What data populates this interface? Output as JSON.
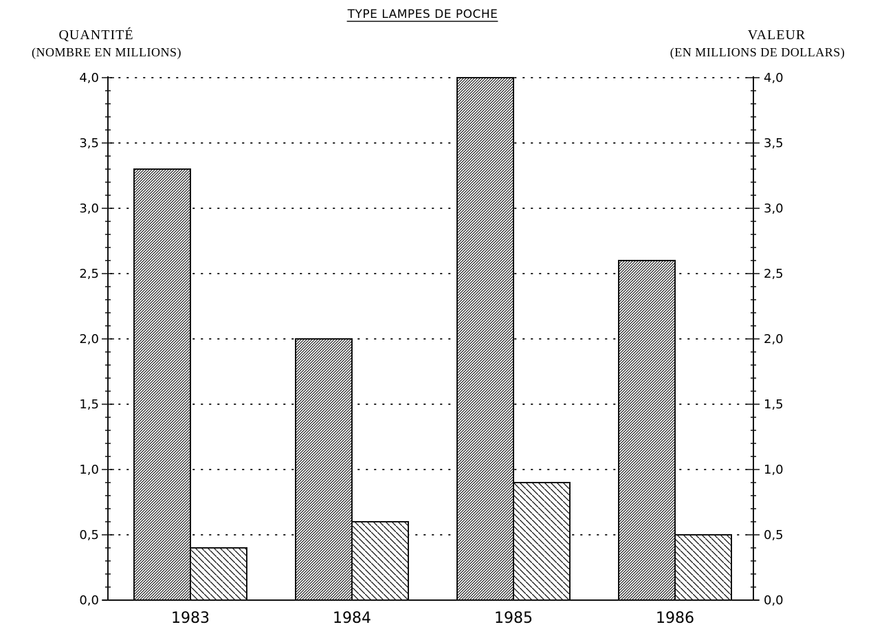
{
  "chart_data": {
    "type": "bar",
    "title": "TYPE LAMPES DE POCHE",
    "left_axis": {
      "title": "QUANTITÉ",
      "subtitle": "(NOMBRE EN MILLIONS)",
      "ylim": [
        0,
        4
      ],
      "ticks": [
        "0,0",
        "0,5",
        "1,0",
        "1,5",
        "2,0",
        "2,5",
        "3,0",
        "3,5",
        "4,0"
      ]
    },
    "right_axis": {
      "title": "VALEUR",
      "subtitle": "(EN MILLIONS DE DOLLARS)",
      "ylim": [
        0,
        4
      ],
      "ticks": [
        "0,0",
        "0,5",
        "1,0",
        "1,5",
        "2,0",
        "2,5",
        "3,0",
        "3,5",
        "4,0"
      ]
    },
    "categories": [
      "1983",
      "1984",
      "1985",
      "1986"
    ],
    "series": [
      {
        "axis": "left",
        "pattern": "dense-hatch-right",
        "values": [
          3.3,
          2.0,
          4.0,
          2.6
        ]
      },
      {
        "axis": "right",
        "pattern": "sparse-hatch-left",
        "values": [
          0.4,
          0.6,
          0.9,
          0.5
        ]
      }
    ],
    "grid": "dotted",
    "legend": "none"
  }
}
